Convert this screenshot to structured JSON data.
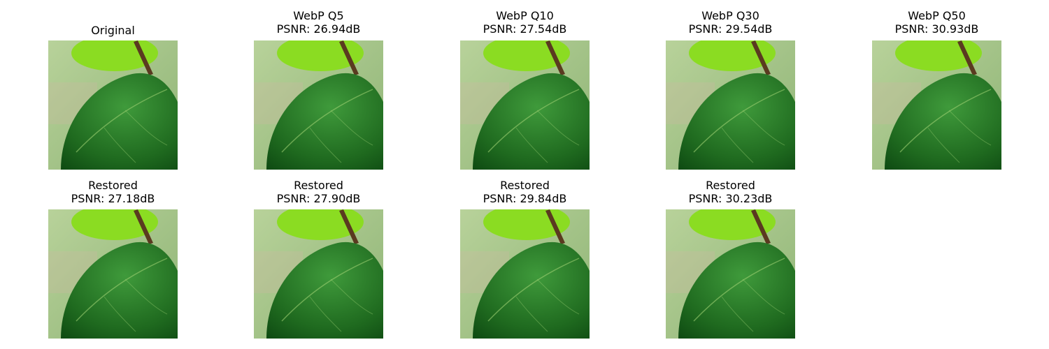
{
  "figure": {
    "panels": [
      {
        "id": "original",
        "title_lines": [
          "Original"
        ]
      },
      {
        "id": "webp-q5",
        "title_lines": [
          "WebP Q5",
          "PSNR: 26.94dB"
        ]
      },
      {
        "id": "webp-q10",
        "title_lines": [
          "WebP Q10",
          "PSNR: 27.54dB"
        ]
      },
      {
        "id": "webp-q30",
        "title_lines": [
          "WebP Q30",
          "PSNR: 29.54dB"
        ]
      },
      {
        "id": "webp-q50",
        "title_lines": [
          "WebP Q50",
          "PSNR: 30.93dB"
        ]
      },
      {
        "id": "restored-q5",
        "title_lines": [
          "Restored",
          "PSNR: 27.18dB"
        ]
      },
      {
        "id": "restored-q10",
        "title_lines": [
          "Restored",
          "PSNR: 27.90dB"
        ]
      },
      {
        "id": "restored-q30",
        "title_lines": [
          "Restored",
          "PSNR: 29.84dB"
        ]
      },
      {
        "id": "restored-q50",
        "title_lines": [
          "Restored",
          "PSNR: 30.23dB"
        ]
      }
    ]
  },
  "colors": {
    "background_top": "#b8d29a",
    "background_bottom": "#8fb476",
    "leaf_top": "#8bdc22",
    "leaf_main": "#3f9a3b",
    "leaf_main_dark": "#1f6a1f",
    "leaf_shadow": "#0e4a12",
    "stem": "#5a3a20",
    "vein": "#9ccf72"
  }
}
